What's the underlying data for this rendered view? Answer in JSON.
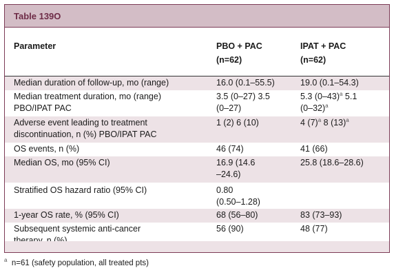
{
  "title": "Table 139O",
  "header": {
    "parameter": "Parameter",
    "arm1_line1": "PBO + PAC",
    "arm1_line2": "(n=62)",
    "arm2_line1": "IPAT + PAC",
    "arm2_line2": "(n=62)"
  },
  "rows": [
    {
      "param": [
        "Median duration of follow-up, mo (range)"
      ],
      "arm1": [
        "16.0 (0.1–55.5)"
      ],
      "arm2": [
        "19.0 (0.1–54.3)"
      ]
    },
    {
      "param": [
        "Median treatment duration, mo (range)",
        "PBO/IPAT PAC"
      ],
      "arm1": [
        "3.5 (0–27) 3.5",
        "(0–27)"
      ],
      "arm2": [
        "5.3 (0–43)",
        "5.1",
        "(0–32)"
      ]
    },
    {
      "param": [
        "Adverse event leading to treatment",
        "discontinuation, n (%) PBO/IPAT PAC"
      ],
      "arm1": [
        "1 (2) 6 (10)"
      ],
      "arm2": [
        "4 (7)",
        "8 (13)"
      ]
    },
    {
      "param": [
        "OS events, n (%)"
      ],
      "arm1": [
        "46 (74)"
      ],
      "arm2": [
        "41 (66)"
      ]
    },
    {
      "param": [
        "Median OS, mo (95% CI)"
      ],
      "arm1": [
        "16.9 (14.6",
        "–24.6)"
      ],
      "arm2": [
        "25.8 (18.6–28.6)"
      ]
    },
    {
      "param": [
        "Stratified OS hazard ratio (95% CI)"
      ],
      "arm1": [
        "0.80",
        "(0.50–1.28)"
      ],
      "arm2": [
        ""
      ]
    },
    {
      "param": [
        "1-year OS rate, % (95% CI)"
      ],
      "arm1": [
        "68 (56–80)"
      ],
      "arm2": [
        "83 (73–93)"
      ]
    },
    {
      "param": [
        "Subsequent systemic anti-cancer",
        "therapy, n (%)"
      ],
      "arm1": [
        "56 (90)"
      ],
      "arm2": [
        "48 (77)"
      ]
    }
  ],
  "footnote_marker": "a",
  "footnote": "n=61 (safety population, all treated pts)"
}
